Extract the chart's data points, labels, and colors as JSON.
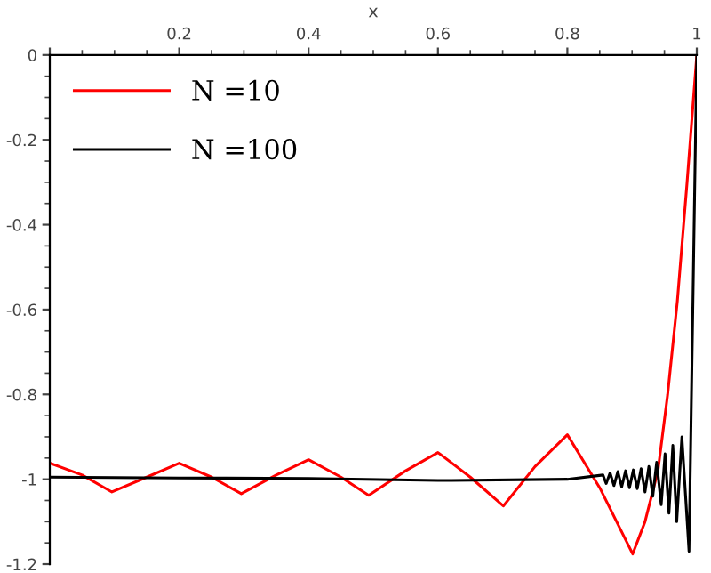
{
  "chart_data": {
    "type": "line",
    "xlabel": "x",
    "xlim": [
      0,
      1
    ],
    "xticks": [
      {
        "value": 0,
        "label": null
      },
      0.2,
      0.4,
      0.6,
      0.8,
      1
    ],
    "ylim": [
      -1.2,
      0
    ],
    "yticks": [
      0,
      -0.2,
      -0.4,
      -0.6,
      -0.8,
      -1,
      -1.2
    ],
    "grid": false,
    "legend": "top left",
    "marker": "none",
    "line_style": "solid",
    "series": [
      {
        "name": "N =10",
        "color": "#ff0000",
        "x": [
          0,
          0.05,
          0.096,
          0.15,
          0.2,
          0.25,
          0.296,
          0.35,
          0.4,
          0.45,
          0.493,
          0.55,
          0.6,
          0.65,
          0.701,
          0.75,
          0.8,
          0.85,
          0.901,
          0.92,
          0.94,
          0.955,
          0.97,
          0.985,
          1.0
        ],
        "values": [
          -0.962,
          -0.99,
          -1.03,
          -0.995,
          -0.962,
          -0.995,
          -1.034,
          -0.99,
          -0.954,
          -0.995,
          -1.038,
          -0.98,
          -0.937,
          -0.995,
          -1.063,
          -0.97,
          -0.895,
          -1.02,
          -1.176,
          -1.1,
          -0.98,
          -0.8,
          -0.58,
          -0.3,
          0.0
        ]
      },
      {
        "name": "N =100",
        "color": "#000000",
        "x": [
          0,
          0.2,
          0.4,
          0.6,
          0.8,
          0.855,
          0.86,
          0.866,
          0.872,
          0.878,
          0.884,
          0.89,
          0.896,
          0.902,
          0.908,
          0.914,
          0.92,
          0.926,
          0.932,
          0.938,
          0.945,
          0.951,
          0.957,
          0.963,
          0.969,
          0.977,
          0.988,
          1.0
        ],
        "values": [
          -0.995,
          -0.997,
          -0.998,
          -1.003,
          -1.0,
          -0.99,
          -1.01,
          -0.985,
          -1.015,
          -0.982,
          -1.018,
          -0.98,
          -1.02,
          -0.978,
          -1.022,
          -0.975,
          -1.03,
          -0.97,
          -1.04,
          -0.96,
          -1.06,
          -0.94,
          -1.08,
          -0.92,
          -1.1,
          -0.9,
          -1.17,
          0.0
        ]
      }
    ]
  }
}
